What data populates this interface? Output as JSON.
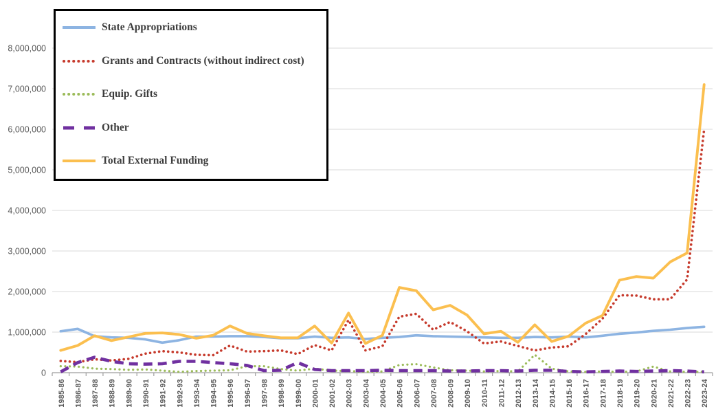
{
  "chart_data": {
    "type": "line",
    "title": "",
    "xlabel": "",
    "ylabel": "",
    "grid": true,
    "legend_position": "top-left",
    "ylim": [
      0,
      8000000
    ],
    "ytick_step": 1000000,
    "yticks": [
      {
        "value": 0,
        "label": "0"
      },
      {
        "value": 1000000,
        "label": "1,000,000"
      },
      {
        "value": 2000000,
        "label": "2,000,000"
      },
      {
        "value": 3000000,
        "label": "3,000,000"
      },
      {
        "value": 4000000,
        "label": "4,000,000"
      },
      {
        "value": 5000000,
        "label": "5,000,000"
      },
      {
        "value": 6000000,
        "label": "6,000,000"
      },
      {
        "value": 7000000,
        "label": "7,000,000"
      },
      {
        "value": 8000000,
        "label": "8,000,000"
      }
    ],
    "grid_color": "#d9d9d9",
    "axis_color": "#9e9e9e",
    "label_color": "#595959",
    "categories": [
      "1985-86",
      "1986-87",
      "1987-88",
      "1988-89",
      "1989-90",
      "1990-91",
      "1991-92",
      "1992-93",
      "1993-94",
      "1994-95",
      "1995-96",
      "1996-97",
      "1997-98",
      "1998-99",
      "1999-00",
      "2000-01",
      "2001-02",
      "2002-03",
      "2003-04",
      "2004-05",
      "2005-06",
      "2006-07",
      "2007-08",
      "2008-09",
      "2009-10",
      "2010-11",
      "2011-12",
      "2012-13",
      "2013-14",
      "2014-15",
      "2015-16",
      "2016-17",
      "2017-18",
      "2018-19",
      "2019-20",
      "2020-21",
      "2021-22",
      "2022-23",
      "2023-24"
    ],
    "series": [
      {
        "name": "State Appropriations",
        "color": "#8db4e2",
        "style": "solid",
        "values": [
          1020000,
          1080000,
          900000,
          870000,
          860000,
          820000,
          740000,
          800000,
          890000,
          890000,
          900000,
          900000,
          880000,
          850000,
          850000,
          890000,
          860000,
          870000,
          830000,
          860000,
          880000,
          920000,
          900000,
          890000,
          880000,
          870000,
          860000,
          860000,
          880000,
          870000,
          890000,
          870000,
          910000,
          960000,
          990000,
          1030000,
          1060000,
          1100000,
          1130000
        ]
      },
      {
        "name": "Grants and Contracts (without indirect cost)",
        "color": "#c63a2c",
        "style": "dotted",
        "values": [
          290000,
          260000,
          330000,
          300000,
          340000,
          470000,
          530000,
          500000,
          440000,
          430000,
          670000,
          520000,
          530000,
          550000,
          460000,
          680000,
          550000,
          1300000,
          550000,
          650000,
          1380000,
          1450000,
          1060000,
          1250000,
          1020000,
          720000,
          770000,
          660000,
          550000,
          620000,
          650000,
          950000,
          1330000,
          1910000,
          1900000,
          1810000,
          1810000,
          2300000,
          6000000
        ]
      },
      {
        "name": "Equip. Gifts",
        "color": "#9bbb59",
        "style": "dotted",
        "values": [
          160000,
          150000,
          100000,
          90000,
          70000,
          80000,
          50000,
          20000,
          40000,
          50000,
          60000,
          160000,
          160000,
          90000,
          50000,
          100000,
          50000,
          40000,
          20000,
          30000,
          190000,
          210000,
          130000,
          60000,
          50000,
          30000,
          40000,
          30000,
          440000,
          100000,
          30000,
          20000,
          30000,
          20000,
          30000,
          150000,
          30000,
          20000,
          20000
        ]
      },
      {
        "name": "Other",
        "color": "#7030a0",
        "style": "dashed",
        "values": [
          20000,
          250000,
          380000,
          280000,
          220000,
          210000,
          220000,
          280000,
          280000,
          250000,
          220000,
          180000,
          50000,
          60000,
          250000,
          80000,
          50000,
          50000,
          50000,
          60000,
          50000,
          50000,
          50000,
          40000,
          40000,
          50000,
          50000,
          40000,
          60000,
          60000,
          30000,
          20000,
          30000,
          40000,
          30000,
          40000,
          50000,
          40000,
          20000
        ]
      },
      {
        "name": "Total External Funding",
        "color": "#fbbf4f",
        "style": "solid",
        "values": [
          550000,
          670000,
          910000,
          790000,
          880000,
          970000,
          980000,
          940000,
          850000,
          920000,
          1150000,
          970000,
          910000,
          860000,
          860000,
          1150000,
          730000,
          1470000,
          720000,
          920000,
          2100000,
          2020000,
          1550000,
          1660000,
          1420000,
          960000,
          1020000,
          750000,
          1180000,
          770000,
          900000,
          1220000,
          1410000,
          2280000,
          2370000,
          2330000,
          2730000,
          2950000,
          7100000
        ]
      }
    ]
  }
}
